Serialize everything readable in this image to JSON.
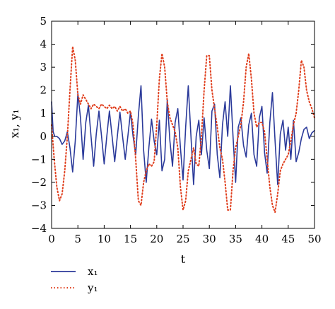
{
  "chart_data": {
    "type": "line",
    "title": "",
    "xlabel": "t",
    "ylabel": "x₁, y₁",
    "xlim": [
      0,
      50
    ],
    "ylim": [
      -4,
      5
    ],
    "xticks": [
      0,
      5,
      10,
      15,
      20,
      25,
      30,
      35,
      40,
      45,
      50
    ],
    "yticks": [
      -4,
      -3,
      -2,
      -1,
      0,
      1,
      2,
      3,
      4,
      5
    ],
    "grid": false,
    "legend": "bottom-left-below-axes",
    "series": [
      {
        "name": "x₁",
        "color": "#2b3a9a",
        "style": "solid",
        "points": [
          [
            0,
            1.5
          ],
          [
            0.3,
            0.2
          ],
          [
            0.6,
            0.0
          ],
          [
            1.0,
            0.0
          ],
          [
            1.5,
            -0.1
          ],
          [
            2.0,
            -0.35
          ],
          [
            2.5,
            -0.2
          ],
          [
            3.0,
            0.2
          ],
          [
            3.5,
            -0.5
          ],
          [
            4.0,
            -1.55
          ],
          [
            4.5,
            -0.2
          ],
          [
            5.0,
            1.85
          ],
          [
            5.5,
            0.8
          ],
          [
            6.0,
            -1.0
          ],
          [
            6.5,
            0.6
          ],
          [
            7.0,
            1.35
          ],
          [
            7.5,
            0.0
          ],
          [
            8.0,
            -1.3
          ],
          [
            8.5,
            0.1
          ],
          [
            9.0,
            1.1
          ],
          [
            9.5,
            0.0
          ],
          [
            10.0,
            -1.2
          ],
          [
            10.5,
            0.0
          ],
          [
            11.0,
            1.1
          ],
          [
            11.5,
            0.0
          ],
          [
            12.0,
            -1.1
          ],
          [
            12.5,
            0.0
          ],
          [
            13.0,
            1.05
          ],
          [
            13.5,
            0.0
          ],
          [
            14.0,
            -1.0
          ],
          [
            14.5,
            0.0
          ],
          [
            15.0,
            1.05
          ],
          [
            15.5,
            0.0
          ],
          [
            16.0,
            -0.8
          ],
          [
            16.5,
            0.9
          ],
          [
            17.0,
            2.2
          ],
          [
            17.5,
            -0.6
          ],
          [
            18.0,
            -2.0
          ],
          [
            18.5,
            -0.5
          ],
          [
            19.0,
            0.75
          ],
          [
            19.5,
            -0.2
          ],
          [
            20.0,
            -0.8
          ],
          [
            20.5,
            0.7
          ],
          [
            21.0,
            -1.5
          ],
          [
            21.5,
            -1.0
          ],
          [
            22.0,
            1.6
          ],
          [
            22.5,
            -0.2
          ],
          [
            23.0,
            -1.3
          ],
          [
            23.5,
            0.6
          ],
          [
            24.0,
            1.2
          ],
          [
            24.5,
            -0.5
          ],
          [
            25.0,
            -1.9
          ],
          [
            25.5,
            0.4
          ],
          [
            26.0,
            2.2
          ],
          [
            26.5,
            0.0
          ],
          [
            27.0,
            -2.1
          ],
          [
            27.5,
            0.0
          ],
          [
            28.0,
            0.7
          ],
          [
            28.5,
            -0.8
          ],
          [
            29.0,
            0.8
          ],
          [
            29.5,
            -0.6
          ],
          [
            30.0,
            -1.4
          ],
          [
            30.5,
            1.1
          ],
          [
            31.0,
            1.4
          ],
          [
            31.5,
            -0.8
          ],
          [
            32.0,
            -1.8
          ],
          [
            32.5,
            0.5
          ],
          [
            33.0,
            1.5
          ],
          [
            33.5,
            0.0
          ],
          [
            34.0,
            2.2
          ],
          [
            34.5,
            0.0
          ],
          [
            35.0,
            -2.0
          ],
          [
            35.5,
            0.4
          ],
          [
            36.0,
            0.8
          ],
          [
            36.5,
            -0.4
          ],
          [
            37.0,
            -0.9
          ],
          [
            37.5,
            0.5
          ],
          [
            38.0,
            1.0
          ],
          [
            38.5,
            -0.8
          ],
          [
            39.0,
            -1.3
          ],
          [
            39.5,
            0.8
          ],
          [
            40.0,
            1.3
          ],
          [
            40.5,
            -0.7
          ],
          [
            41.0,
            -1.6
          ],
          [
            41.5,
            0.6
          ],
          [
            42.0,
            1.9
          ],
          [
            42.5,
            -0.2
          ],
          [
            43.0,
            -2.1
          ],
          [
            43.5,
            0.1
          ],
          [
            44.0,
            0.7
          ],
          [
            44.5,
            -0.6
          ],
          [
            45.0,
            0.4
          ],
          [
            45.5,
            -1.0
          ],
          [
            46.0,
            0.7
          ],
          [
            46.5,
            -1.1
          ],
          [
            47.0,
            -0.7
          ],
          [
            47.5,
            -0.1
          ],
          [
            48.0,
            0.3
          ],
          [
            48.5,
            0.4
          ],
          [
            49.0,
            -0.1
          ],
          [
            49.5,
            0.15
          ],
          [
            50.0,
            0.25
          ]
        ]
      },
      {
        "name": "y₁",
        "color": "#e0401f",
        "style": "dotted",
        "points": [
          [
            0,
            0.5
          ],
          [
            0.5,
            -1.0
          ],
          [
            1.0,
            -2.2
          ],
          [
            1.5,
            -2.8
          ],
          [
            2.0,
            -2.5
          ],
          [
            2.5,
            -1.5
          ],
          [
            3.0,
            0.0
          ],
          [
            3.5,
            2.0
          ],
          [
            4.0,
            3.9
          ],
          [
            4.5,
            3.3
          ],
          [
            5.0,
            1.8
          ],
          [
            5.5,
            1.4
          ],
          [
            6.0,
            1.8
          ],
          [
            6.5,
            1.6
          ],
          [
            7.0,
            1.4
          ],
          [
            7.5,
            1.2
          ],
          [
            8.0,
            1.4
          ],
          [
            8.5,
            1.3
          ],
          [
            9.0,
            1.2
          ],
          [
            9.5,
            1.4
          ],
          [
            10.0,
            1.3
          ],
          [
            10.5,
            1.2
          ],
          [
            11.0,
            1.35
          ],
          [
            11.5,
            1.2
          ],
          [
            12.0,
            1.3
          ],
          [
            12.5,
            1.1
          ],
          [
            13.0,
            1.3
          ],
          [
            13.5,
            1.1
          ],
          [
            14.0,
            1.2
          ],
          [
            14.5,
            1.0
          ],
          [
            15.0,
            1.1
          ],
          [
            15.5,
            0.5
          ],
          [
            16.0,
            -1.0
          ],
          [
            16.5,
            -2.8
          ],
          [
            17.0,
            -3.0
          ],
          [
            17.5,
            -2.0
          ],
          [
            18.0,
            -1.5
          ],
          [
            18.5,
            -1.2
          ],
          [
            19.0,
            -1.3
          ],
          [
            19.5,
            -1.1
          ],
          [
            20.0,
            0.5
          ],
          [
            20.5,
            2.5
          ],
          [
            21.0,
            3.6
          ],
          [
            21.5,
            3.0
          ],
          [
            22.0,
            1.5
          ],
          [
            22.5,
            0.8
          ],
          [
            23.0,
            0.5
          ],
          [
            23.5,
            0.2
          ],
          [
            24.0,
            -0.5
          ],
          [
            24.5,
            -2.2
          ],
          [
            25.0,
            -3.2
          ],
          [
            25.5,
            -2.8
          ],
          [
            26.0,
            -1.5
          ],
          [
            26.5,
            -1.0
          ],
          [
            27.0,
            -0.5
          ],
          [
            27.5,
            -1.2
          ],
          [
            28.0,
            -1.3
          ],
          [
            28.5,
            0.0
          ],
          [
            29.0,
            2.0
          ],
          [
            29.5,
            3.5
          ],
          [
            30.0,
            3.5
          ],
          [
            30.5,
            2.0
          ],
          [
            31.0,
            1.2
          ],
          [
            31.5,
            0.4
          ],
          [
            32.0,
            -0.5
          ],
          [
            32.5,
            -1.0
          ],
          [
            33.0,
            -2.0
          ],
          [
            33.5,
            -3.2
          ],
          [
            34.0,
            -3.2
          ],
          [
            34.5,
            -1.5
          ],
          [
            35.0,
            -0.5
          ],
          [
            35.5,
            0.0
          ],
          [
            36.0,
            0.5
          ],
          [
            36.5,
            1.5
          ],
          [
            37.0,
            3.0
          ],
          [
            37.5,
            3.6
          ],
          [
            38.0,
            2.5
          ],
          [
            38.5,
            1.0
          ],
          [
            39.0,
            0.4
          ],
          [
            39.5,
            0.6
          ],
          [
            40.0,
            0.6
          ],
          [
            40.5,
            0.2
          ],
          [
            41.0,
            -1.0
          ],
          [
            41.5,
            -2.2
          ],
          [
            42.0,
            -3.0
          ],
          [
            42.5,
            -3.3
          ],
          [
            43.0,
            -2.5
          ],
          [
            43.5,
            -1.5
          ],
          [
            44.0,
            -1.2
          ],
          [
            44.5,
            -1.0
          ],
          [
            45.0,
            -0.8
          ],
          [
            45.5,
            -0.2
          ],
          [
            46.0,
            0.5
          ],
          [
            46.5,
            1.0
          ],
          [
            47.0,
            2.0
          ],
          [
            47.5,
            3.3
          ],
          [
            48.0,
            3.0
          ],
          [
            48.5,
            2.0
          ],
          [
            49.0,
            1.5
          ],
          [
            49.5,
            1.2
          ],
          [
            50.0,
            0.8
          ]
        ]
      }
    ]
  }
}
